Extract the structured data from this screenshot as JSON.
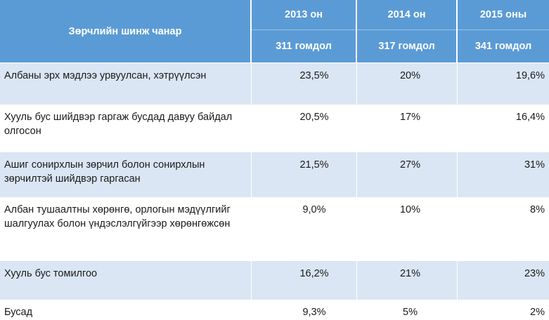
{
  "header": {
    "label": "Зөрчлийн шинж чанар",
    "columns": [
      {
        "year": "2013 он",
        "count": "311 гомдол"
      },
      {
        "year": "2014 он",
        "count": "317 гомдол"
      },
      {
        "year": "2015 оны",
        "count": "341 гомдол"
      }
    ]
  },
  "rows": [
    {
      "label": "Албаны эрх мэдлээ урвуулсан, хэтрүүлсэн",
      "v2013": "23,5%",
      "v2014": "20%",
      "v2015": "19,6%"
    },
    {
      "label": "Хууль бус шийдвэр гаргаж  бусдад давуу байдал олгосон",
      "v2013": "20,5%",
      "v2014": "17%",
      "v2015": "16,4%"
    },
    {
      "label": "Ашиг сонирхлын зөрчил болон сонирхлын зөрчилтэй шийдвэр гаргасан",
      "v2013": "21,5%",
      "v2014": "27%",
      "v2015": "31%"
    },
    {
      "label": "Албан тушаалтны хөрөнгө, орлогын мэдүүлгийг шалгуулах болон үндэслэлгүйгээр хөрөнгөжсөн",
      "v2013": "9,0%",
      "v2014": "10%",
      "v2015": "8%"
    },
    {
      "label": "Хууль бус томилгоо",
      "v2013": "16,2%",
      "v2014": "21%",
      "v2015": "23%"
    },
    {
      "label": "Бусад",
      "v2013": "9,3%",
      "v2014": "5%",
      "v2015": "2%"
    }
  ]
}
